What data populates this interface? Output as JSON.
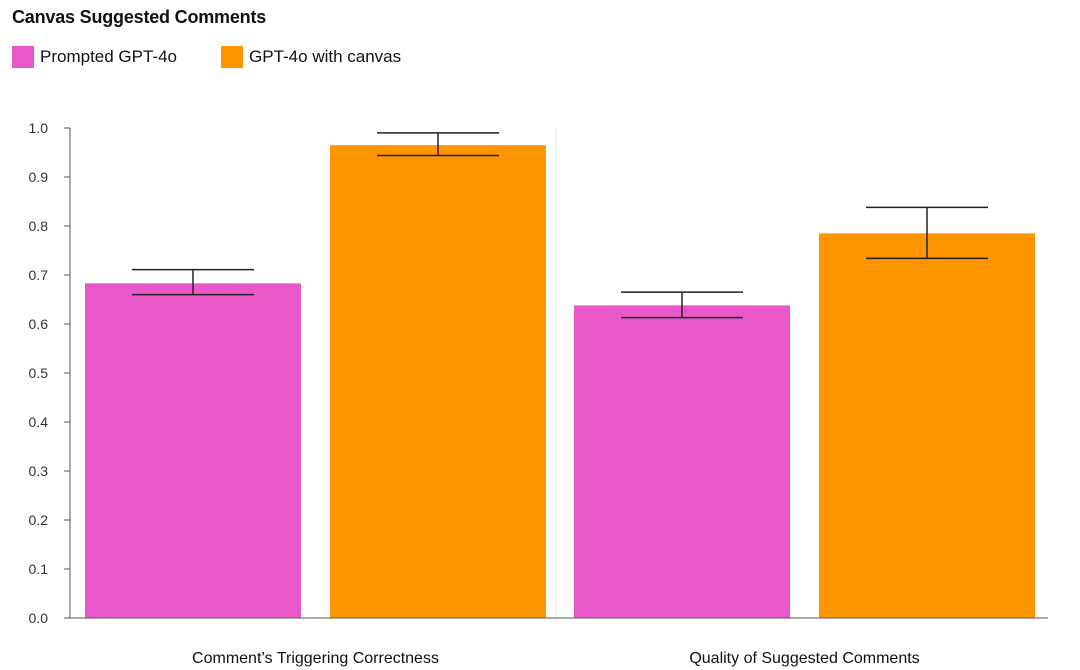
{
  "chart_data": {
    "type": "bar",
    "title": "Canvas Suggested Comments",
    "categories": [
      "Comment’s Triggering Correctness",
      "Quality of Suggested Comments"
    ],
    "series": [
      {
        "name": "Prompted GPT-4o",
        "color": "#e858c8",
        "values": [
          0.683,
          0.638
        ],
        "error_low": [
          0.66,
          0.613
        ],
        "error_high": [
          0.711,
          0.665
        ]
      },
      {
        "name": "GPT-4o with canvas",
        "color": "#ff9500",
        "values": [
          0.965,
          0.785
        ],
        "error_low": [
          0.944,
          0.734
        ],
        "error_high": [
          0.99,
          0.838
        ]
      }
    ],
    "ylim": [
      0,
      1.0
    ],
    "yticks": [
      "0.0",
      "0.1",
      "0.2",
      "0.3",
      "0.4",
      "0.5",
      "0.6",
      "0.7",
      "0.8",
      "0.9",
      "1.0"
    ],
    "xlabel": "",
    "ylabel": "",
    "legend_position": "top-left",
    "grid": false
  }
}
